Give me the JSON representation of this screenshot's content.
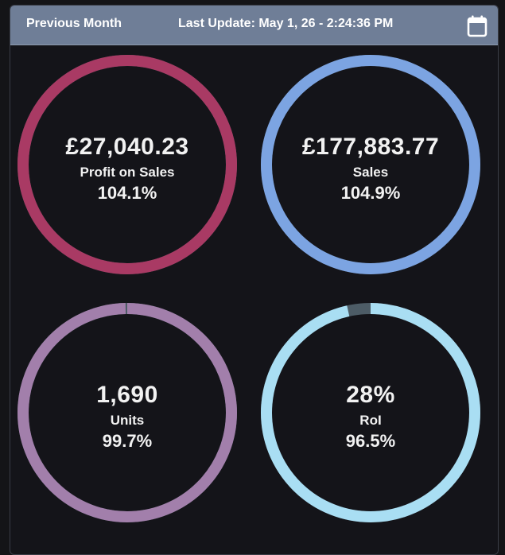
{
  "header": {
    "period_label": "Previous Month",
    "last_update_text": "Last Update: May 1, 26 - 2:24:36 PM",
    "calendar_icon": "calendar-icon",
    "background_color": "#6f7e97"
  },
  "gauges": [
    {
      "key": "profit",
      "value": "£27,040.23",
      "label": "Profit on Sales",
      "percent_text": "104.1%",
      "fill_fraction": 1.0,
      "color": "#a93a64",
      "track_color": "#4d5c66"
    },
    {
      "key": "sales",
      "value": "£177,883.77",
      "label": "Sales",
      "percent_text": "104.9%",
      "fill_fraction": 1.0,
      "color": "#7ca4e2",
      "track_color": "#4d5c66"
    },
    {
      "key": "units",
      "value": "1,690",
      "label": "Units",
      "percent_text": "99.7%",
      "fill_fraction": 0.997,
      "color": "#a27fab",
      "track_color": "#4d5c66"
    },
    {
      "key": "roi",
      "value": "28%",
      "label": "RoI",
      "percent_text": "96.5%",
      "fill_fraction": 0.965,
      "color": "#a9def3",
      "track_color": "#4d5c66"
    }
  ]
}
